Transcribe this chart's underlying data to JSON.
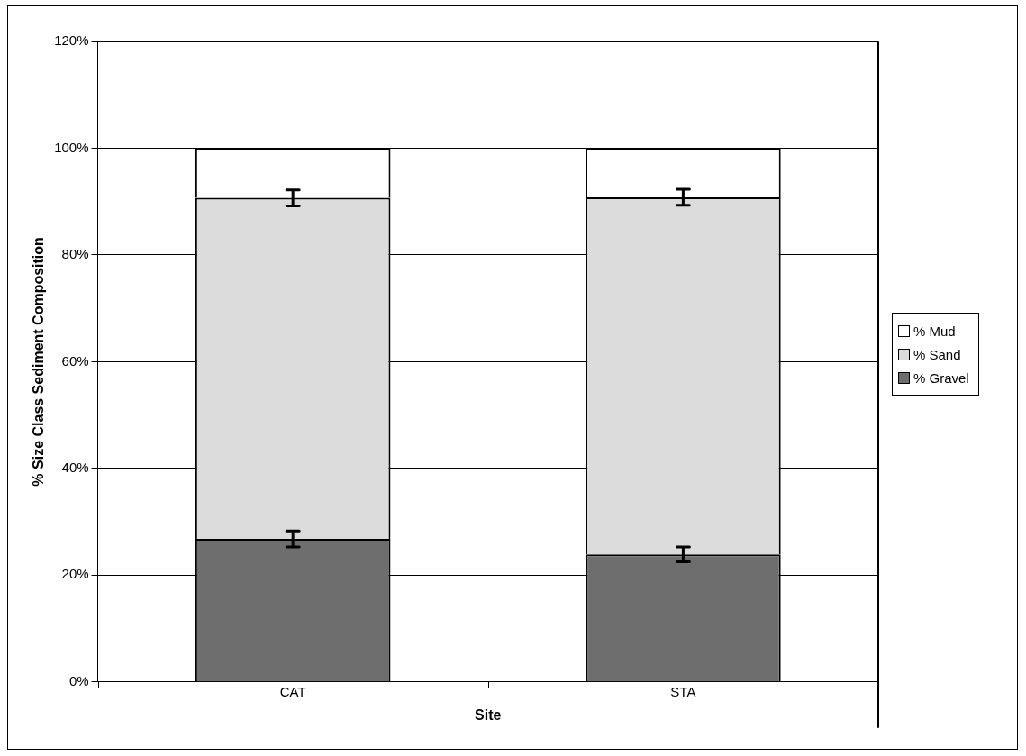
{
  "chart_data": {
    "type": "bar",
    "stacked": true,
    "xlabel": "Site",
    "ylabel": "% Size Class Sediment Composition",
    "categories": [
      "CAT",
      "STA"
    ],
    "series": [
      {
        "name": "% Gravel",
        "color": "#6e6e6e",
        "values": [
          26.8,
          23.9
        ],
        "errors": [
          1.5,
          1.4
        ]
      },
      {
        "name": "% Sand",
        "color": "#dcdcdc",
        "values": [
          63.9,
          66.9
        ],
        "errors": [
          1.5,
          1.5
        ]
      },
      {
        "name": "% Mud",
        "color": "#ffffff",
        "values": [
          9.3,
          9.2
        ]
      }
    ],
    "ylim": [
      0,
      120
    ],
    "yticks": [
      {
        "value": 0,
        "label": "0%"
      },
      {
        "value": 20,
        "label": "20%"
      },
      {
        "value": 40,
        "label": "40%"
      },
      {
        "value": 60,
        "label": "60%"
      },
      {
        "value": 80,
        "label": "80%"
      },
      {
        "value": 100,
        "label": "100%"
      },
      {
        "value": 120,
        "label": "120%"
      }
    ],
    "grid": "y",
    "legend": "right"
  }
}
